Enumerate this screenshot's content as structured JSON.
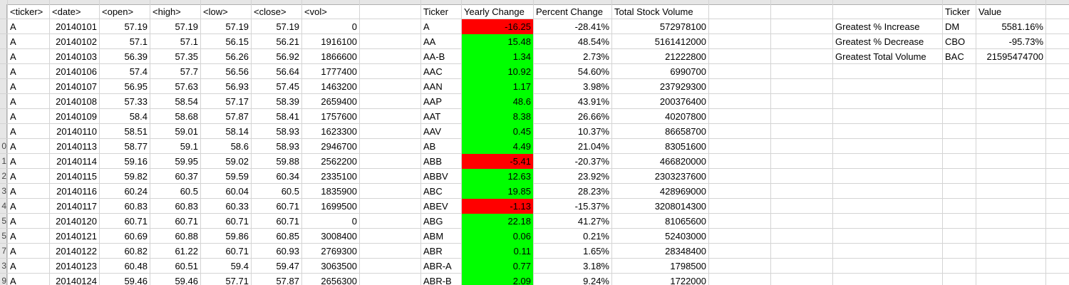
{
  "raw": {
    "headers": [
      "<ticker>",
      "<date>",
      "<open>",
      "<high>",
      "<low>",
      "<close>",
      "<vol>"
    ],
    "rows": [
      [
        "A",
        "20140101",
        "57.19",
        "57.19",
        "57.19",
        "57.19",
        "0"
      ],
      [
        "A",
        "20140102",
        "57.1",
        "57.1",
        "56.15",
        "56.21",
        "1916100"
      ],
      [
        "A",
        "20140103",
        "56.39",
        "57.35",
        "56.26",
        "56.92",
        "1866600"
      ],
      [
        "A",
        "20140106",
        "57.4",
        "57.7",
        "56.56",
        "56.64",
        "1777400"
      ],
      [
        "A",
        "20140107",
        "56.95",
        "57.63",
        "56.93",
        "57.45",
        "1463200"
      ],
      [
        "A",
        "20140108",
        "57.33",
        "58.54",
        "57.17",
        "58.39",
        "2659400"
      ],
      [
        "A",
        "20140109",
        "58.4",
        "58.68",
        "57.87",
        "58.41",
        "1757600"
      ],
      [
        "A",
        "20140110",
        "58.51",
        "59.01",
        "58.14",
        "58.93",
        "1623300"
      ],
      [
        "A",
        "20140113",
        "58.77",
        "59.1",
        "58.6",
        "58.93",
        "2946700"
      ],
      [
        "A",
        "20140114",
        "59.16",
        "59.95",
        "59.02",
        "59.88",
        "2562200"
      ],
      [
        "A",
        "20140115",
        "59.82",
        "60.37",
        "59.59",
        "60.34",
        "2335100"
      ],
      [
        "A",
        "20140116",
        "60.24",
        "60.5",
        "60.04",
        "60.5",
        "1835900"
      ],
      [
        "A",
        "20140117",
        "60.83",
        "60.83",
        "60.33",
        "60.71",
        "1699500"
      ],
      [
        "A",
        "20140120",
        "60.71",
        "60.71",
        "60.71",
        "60.71",
        "0"
      ],
      [
        "A",
        "20140121",
        "60.69",
        "60.88",
        "59.86",
        "60.85",
        "3008400"
      ],
      [
        "A",
        "20140122",
        "60.82",
        "61.22",
        "60.71",
        "60.93",
        "2769300"
      ],
      [
        "A",
        "20140123",
        "60.48",
        "60.51",
        "59.4",
        "59.47",
        "3063500"
      ],
      [
        "A",
        "20140124",
        "59.46",
        "59.46",
        "57.71",
        "57.87",
        "2656300"
      ]
    ]
  },
  "summary": {
    "headers": [
      "Ticker",
      "Yearly Change",
      "Percent Change",
      "Total Stock Volume"
    ],
    "rows": [
      {
        "ticker": "A",
        "change": "-16.25",
        "pct": "-28.41%",
        "vol": "572978100",
        "status": "negative"
      },
      {
        "ticker": "AA",
        "change": "15.48",
        "pct": "48.54%",
        "vol": "5161412000",
        "status": "positive"
      },
      {
        "ticker": "AA-B",
        "change": "1.34",
        "pct": "2.73%",
        "vol": "21222800",
        "status": "positive"
      },
      {
        "ticker": "AAC",
        "change": "10.92",
        "pct": "54.60%",
        "vol": "6990700",
        "status": "positive"
      },
      {
        "ticker": "AAN",
        "change": "1.17",
        "pct": "3.98%",
        "vol": "237929300",
        "status": "positive"
      },
      {
        "ticker": "AAP",
        "change": "48.6",
        "pct": "43.91%",
        "vol": "200376400",
        "status": "positive"
      },
      {
        "ticker": "AAT",
        "change": "8.38",
        "pct": "26.66%",
        "vol": "40207800",
        "status": "positive"
      },
      {
        "ticker": "AAV",
        "change": "0.45",
        "pct": "10.37%",
        "vol": "86658700",
        "status": "positive"
      },
      {
        "ticker": "AB",
        "change": "4.49",
        "pct": "21.04%",
        "vol": "83051600",
        "status": "positive"
      },
      {
        "ticker": "ABB",
        "change": "-5.41",
        "pct": "-20.37%",
        "vol": "466820000",
        "status": "negative"
      },
      {
        "ticker": "ABBV",
        "change": "12.63",
        "pct": "23.92%",
        "vol": "2303237600",
        "status": "positive"
      },
      {
        "ticker": "ABC",
        "change": "19.85",
        "pct": "28.23%",
        "vol": "428969000",
        "status": "positive"
      },
      {
        "ticker": "ABEV",
        "change": "-1.13",
        "pct": "-15.37%",
        "vol": "3208014300",
        "status": "negative"
      },
      {
        "ticker": "ABG",
        "change": "22.18",
        "pct": "41.27%",
        "vol": "81065600",
        "status": "positive"
      },
      {
        "ticker": "ABM",
        "change": "0.06",
        "pct": "0.21%",
        "vol": "52403000",
        "status": "positive"
      },
      {
        "ticker": "ABR",
        "change": "0.11",
        "pct": "1.65%",
        "vol": "28348400",
        "status": "positive"
      },
      {
        "ticker": "ABR-A",
        "change": "0.77",
        "pct": "3.18%",
        "vol": "1798500",
        "status": "positive"
      },
      {
        "ticker": "ABR-B",
        "change": "2.09",
        "pct": "9.24%",
        "vol": "1722000",
        "status": "positive"
      }
    ]
  },
  "greatest": {
    "headers": [
      "Ticker",
      "Value"
    ],
    "rows": [
      {
        "label": "Greatest % Increase",
        "ticker": "DM",
        "value": "5581.16%"
      },
      {
        "label": "Greatest % Decrease",
        "ticker": "CBO",
        "value": "-95.73%"
      },
      {
        "label": "Greatest Total Volume",
        "ticker": "BAC",
        "value": "21595474700"
      }
    ]
  },
  "row_numbers": [
    "",
    "",
    "",
    "",
    "",
    "",
    "",
    "",
    "0",
    "1",
    "2",
    "3",
    "4",
    "5",
    "5",
    "7",
    "3",
    "9"
  ],
  "colors": {
    "positive": "#00ff00",
    "negative": "#ff0000",
    "grid": "#d4d4d4",
    "header": "#e6e6e6"
  }
}
